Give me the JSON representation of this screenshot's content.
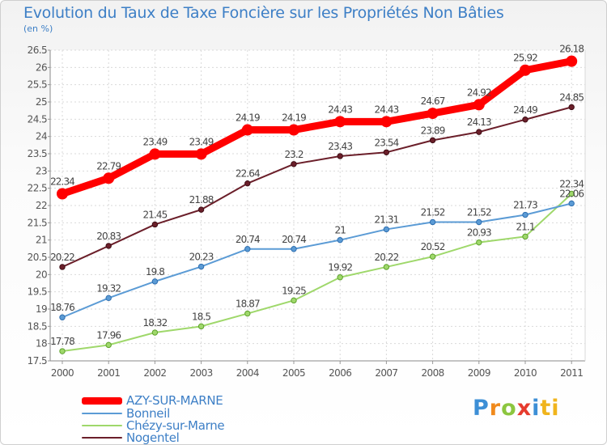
{
  "header": {
    "title": "Evolution du Taux de Taxe Foncière sur les Propriétés Non Bâties",
    "unit": "(en %)"
  },
  "logo": {
    "text": "Proxiti",
    "letters": [
      "P",
      "r",
      "o",
      "x",
      "i",
      "ti"
    ]
  },
  "chart_data": {
    "type": "line",
    "title": "Evolution du Taux de Taxe Foncière sur les Propriétés Non Bâties",
    "ylabel": "(en %)",
    "xlabel": "",
    "x": [
      "2000",
      "2001",
      "2002",
      "2003",
      "2004",
      "2005",
      "2006",
      "2007",
      "2008",
      "2009",
      "2010",
      "2011"
    ],
    "ylim": [
      17.5,
      26.5
    ],
    "yticks": [
      "17.5",
      "18",
      "18.5",
      "19",
      "19.5",
      "20",
      "20.5",
      "21",
      "21.5",
      "22",
      "22.5",
      "23",
      "23.5",
      "24",
      "24.5",
      "25",
      "25.5",
      "26",
      "26.5"
    ],
    "grid": true,
    "legend_position": "bottom-left",
    "series": [
      {
        "name": "AZY-SUR-MARNE",
        "color": "#ff0000",
        "values": [
          22.34,
          22.79,
          23.49,
          23.49,
          24.19,
          24.19,
          24.43,
          24.43,
          24.67,
          24.92,
          25.92,
          26.18
        ],
        "labels": [
          "22.34",
          "22.79",
          "23.49",
          "23.49",
          "24.19",
          "24.19",
          "24.43",
          "24.43",
          "24.67",
          "24.92",
          "25.92",
          "26.18"
        ]
      },
      {
        "name": "Bonneil",
        "color": "#5b9bd5",
        "values": [
          18.76,
          19.32,
          19.8,
          20.23,
          20.74,
          20.74,
          21.0,
          21.31,
          21.52,
          21.52,
          21.73,
          22.06
        ],
        "labels": [
          "18.76",
          "19.32",
          "19.8",
          "20.23",
          "20.74",
          "20.74",
          "21",
          "21.31",
          "21.52",
          "21.52",
          "21.73",
          "22.06"
        ]
      },
      {
        "name": "Chézy-sur-Marne",
        "color": "#9fd86b",
        "values": [
          17.78,
          17.96,
          18.32,
          18.5,
          18.87,
          19.25,
          19.92,
          20.22,
          20.52,
          20.93,
          21.1,
          22.34
        ],
        "labels": [
          "17.78",
          "17.96",
          "18.32",
          "18.5",
          "18.87",
          "19.25",
          "19.92",
          "20.22",
          "20.52",
          "20.93",
          "21.1",
          "22.34"
        ]
      },
      {
        "name": "Nogentel",
        "color": "#6b1f2a",
        "values": [
          20.22,
          20.83,
          21.45,
          21.88,
          22.64,
          23.2,
          23.43,
          23.54,
          23.89,
          24.13,
          24.49,
          24.85
        ],
        "labels": [
          "20.22",
          "20.83",
          "21.45",
          "21.88",
          "22.64",
          "23.2",
          "23.43",
          "23.54",
          "23.89",
          "24.13",
          "24.49",
          "24.85"
        ]
      }
    ]
  }
}
